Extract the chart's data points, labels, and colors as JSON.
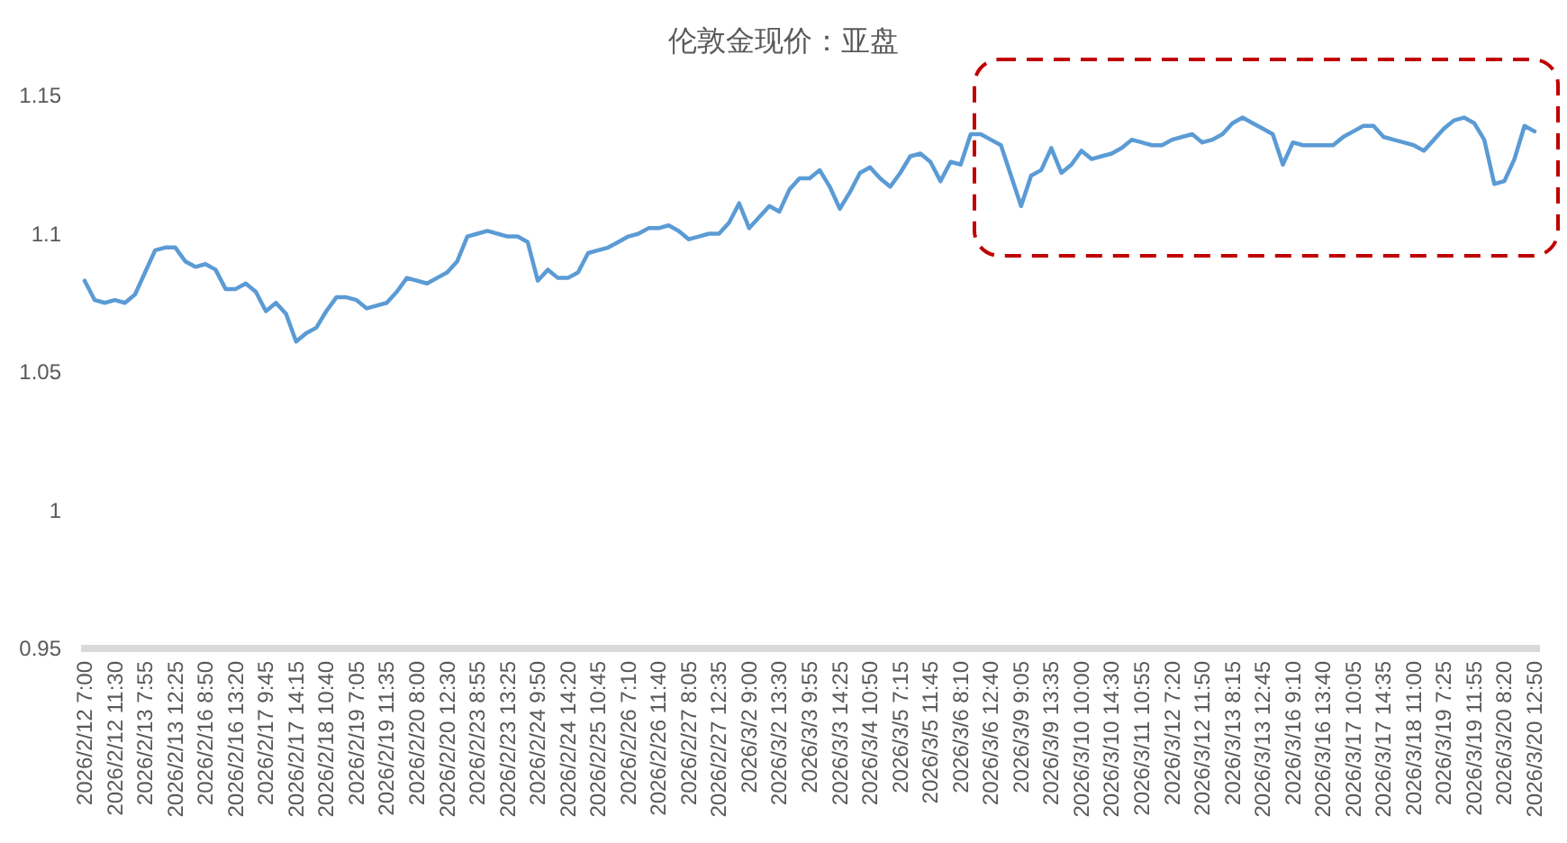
{
  "chart_data": {
    "type": "line",
    "title": "伦敦金现价：亚盘",
    "categories": [
      "2026/2/12 7:00",
      null,
      null,
      "2026/2/12 11:30",
      null,
      null,
      "2026/2/13 7:55",
      null,
      null,
      "2026/2/13 12:25",
      null,
      null,
      "2026/2/16 8:50",
      null,
      null,
      "2026/2/16 13:20",
      null,
      null,
      "2026/2/17 9:45",
      null,
      null,
      "2026/2/17 14:15",
      null,
      null,
      "2026/2/18 10:40",
      null,
      null,
      "2026/2/19 7:05",
      null,
      null,
      "2026/2/19 11:35",
      null,
      null,
      "2026/2/20 8:00",
      null,
      null,
      "2026/2/20 12:30",
      null,
      null,
      "2026/2/23 8:55",
      null,
      null,
      "2026/2/23 13:25",
      null,
      null,
      "2026/2/24 9:50",
      null,
      null,
      "2026/2/24 14:20",
      null,
      null,
      "2026/2/25 10:45",
      null,
      null,
      "2026/2/26 7:10",
      null,
      null,
      "2026/2/26 11:40",
      null,
      null,
      "2026/2/27 8:05",
      null,
      null,
      "2026/2/27 12:35",
      null,
      null,
      "2026/3/2 9:00",
      null,
      null,
      "2026/3/2 13:30",
      null,
      null,
      "2026/3/3 9:55",
      null,
      null,
      "2026/3/3 14:25",
      null,
      null,
      "2026/3/4 10:50",
      null,
      null,
      "2026/3/5 7:15",
      null,
      null,
      "2026/3/5 11:45",
      null,
      null,
      "2026/3/6 8:10",
      null,
      null,
      "2026/3/6 12:40",
      null,
      null,
      "2026/3/9 9:05",
      null,
      null,
      "2026/3/9 13:35",
      null,
      null,
      "2026/3/10 10:00",
      null,
      null,
      "2026/3/10 14:30",
      null,
      null,
      "2026/3/11 10:55",
      null,
      null,
      "2026/3/12 7:20",
      null,
      null,
      "2026/3/12 11:50",
      null,
      null,
      "2026/3/13 8:15",
      null,
      null,
      "2026/3/13 12:45",
      null,
      null,
      "2026/3/16 9:10",
      null,
      null,
      "2026/3/16 13:40",
      null,
      null,
      "2026/3/17 10:05",
      null,
      null,
      "2026/3/17 14:35",
      null,
      null,
      "2026/3/18 11:00",
      null,
      null,
      "2026/3/19 7:25",
      null,
      null,
      "2026/3/19 11:55",
      null,
      null,
      "2026/3/20 8:20",
      null,
      null,
      "2026/3/20 12:50"
    ],
    "values": [
      1.083,
      1.076,
      1.075,
      1.076,
      1.075,
      1.078,
      1.086,
      1.094,
      1.095,
      1.095,
      1.09,
      1.088,
      1.089,
      1.087,
      1.08,
      1.08,
      1.082,
      1.079,
      1.072,
      1.075,
      1.071,
      1.061,
      1.064,
      1.066,
      1.072,
      1.077,
      1.077,
      1.076,
      1.073,
      1.074,
      1.075,
      1.079,
      1.084,
      1.083,
      1.082,
      1.084,
      1.086,
      1.09,
      1.099,
      1.1,
      1.101,
      1.1,
      1.099,
      1.099,
      1.097,
      1.083,
      1.087,
      1.084,
      1.084,
      1.086,
      1.093,
      1.094,
      1.095,
      1.097,
      1.099,
      1.1,
      1.102,
      1.102,
      1.103,
      1.101,
      1.098,
      1.099,
      1.1,
      1.1,
      1.104,
      1.111,
      1.102,
      1.106,
      1.11,
      1.108,
      1.116,
      1.12,
      1.12,
      1.123,
      1.117,
      1.109,
      1.115,
      1.122,
      1.124,
      1.12,
      1.117,
      1.122,
      1.128,
      1.129,
      1.126,
      1.119,
      1.126,
      1.125,
      1.136,
      1.136,
      1.134,
      1.132,
      1.121,
      1.11,
      1.121,
      1.123,
      1.131,
      1.122,
      1.125,
      1.13,
      1.127,
      1.128,
      1.129,
      1.131,
      1.134,
      1.133,
      1.132,
      1.132,
      1.134,
      1.135,
      1.136,
      1.133,
      1.134,
      1.136,
      1.14,
      1.142,
      1.14,
      1.138,
      1.136,
      1.125,
      1.133,
      1.132,
      1.132,
      1.132,
      1.132,
      1.135,
      1.137,
      1.139,
      1.139,
      1.135,
      1.134,
      1.133,
      1.132,
      1.13,
      1.134,
      1.138,
      1.141,
      1.142,
      1.14,
      1.134,
      1.118,
      1.119,
      1.127,
      1.139,
      1.137
    ],
    "color": "#5b9bd5",
    "ylim": [
      0.95,
      1.15
    ],
    "yticks": [
      0.95,
      1,
      1.05,
      1.1,
      1.15
    ]
  }
}
